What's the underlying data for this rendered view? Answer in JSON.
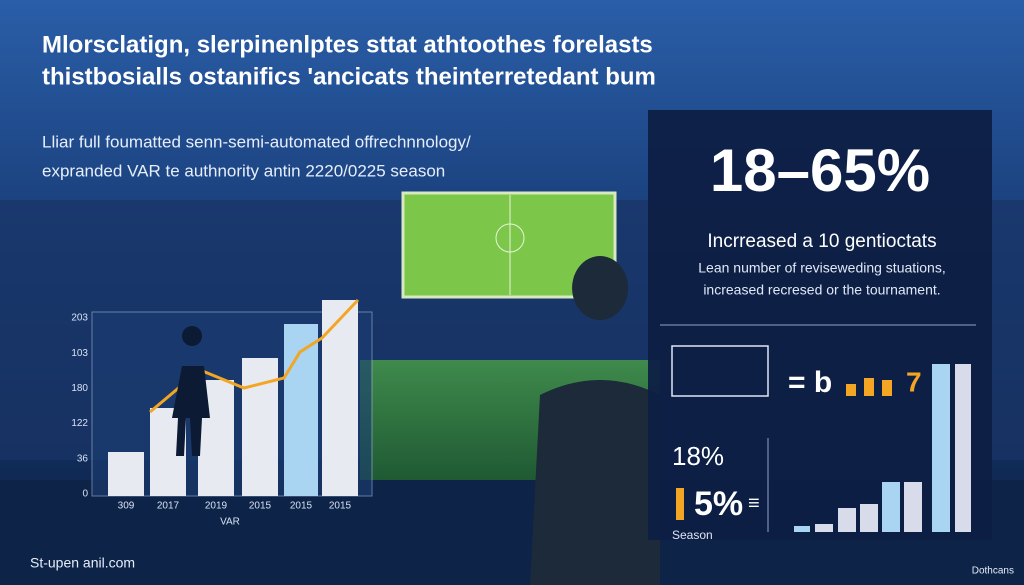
{
  "header": {
    "title": [
      "Mlorsclatign, slerpinenlptes sttat athtoothes forelasts",
      "thistbosialls ostanifics 'ancicats theinterretedant bum"
    ],
    "subtitle": [
      "Lliar full foumatted senn-semi-automated offrechnnology/",
      "expranded VAR te authnority antin 2220/0225 season"
    ]
  },
  "left_chart": {
    "y_labels": [
      "203",
      "103",
      "180",
      "122",
      "36",
      "0"
    ],
    "x_labels": [
      "309",
      "2017",
      "2019",
      "2015",
      "2015",
      "2015"
    ],
    "x_title": "VAR"
  },
  "panel": {
    "big_stat": "18–65%",
    "heading": "Incrreased a 10 gentioctats",
    "text": [
      "Lean number of reviseweding stuations,",
      "increased recresed or the tournament."
    ],
    "equals_stat": "= b",
    "equals_end": "7",
    "stat_a": "18%",
    "stat_b": "5%",
    "stat_b_sign": "≡",
    "season": "Season"
  },
  "footer": {
    "left": "St-upen anil.com",
    "right": "Dothcans"
  }
}
